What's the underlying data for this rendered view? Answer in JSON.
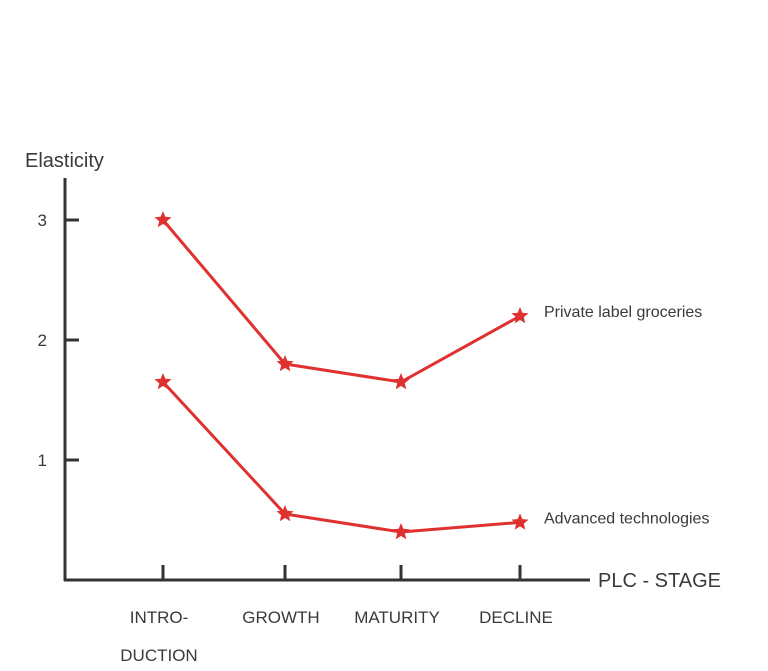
{
  "chart_data": {
    "type": "line",
    "ylabel": "Elasticity",
    "xlabel": "PLC - STAGE",
    "categories": [
      [
        "INTRO-",
        "DUCTION"
      ],
      [
        "GROWTH"
      ],
      [
        "MATURITY"
      ],
      [
        "DECLINE"
      ]
    ],
    "yticks": [
      1,
      2,
      3
    ],
    "ylim": [
      0,
      3.3
    ],
    "grid": false,
    "marker": "star",
    "colors": {
      "series": "#e03131",
      "axis": "#333333",
      "text": "#3a3a3a"
    },
    "series": [
      {
        "name": "Private label groceries",
        "values": [
          3.0,
          1.8,
          1.65,
          2.2
        ]
      },
      {
        "name": "Advanced technologies",
        "values": [
          1.65,
          0.55,
          0.4,
          0.48
        ]
      }
    ]
  }
}
